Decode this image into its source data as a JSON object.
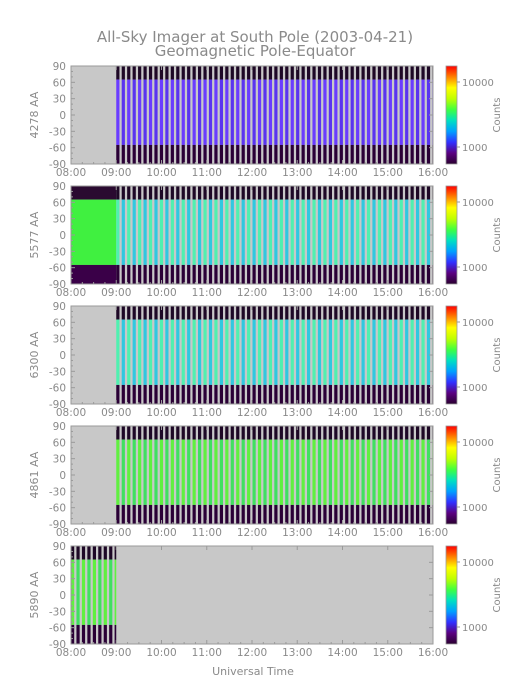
{
  "title_line1": "All-Sky Imager at South Pole (2003-04-21)",
  "title_line2": "Geomagnetic Pole-Equator",
  "xaxis_label": "Universal Time",
  "colorbar_label": "Counts",
  "x_ticks": [
    "08:00",
    "09:00",
    "10:00",
    "11:00",
    "12:00",
    "13:00",
    "14:00",
    "15:00",
    "16:00"
  ],
  "y_ticks": [
    "90",
    "60",
    "30",
    "0",
    "-30",
    "-60",
    "-90"
  ],
  "colorbar_ticks": [
    "10000",
    "1000"
  ],
  "colors": {
    "nodata": "#c8c8c8",
    "border": "#9a9a9a",
    "colormap": [
      "#2a0030",
      "#5a0080",
      "#3030ff",
      "#00a0ff",
      "#00e0c0",
      "#40ff40",
      "#c0ff00",
      "#ffff00",
      "#ff8000",
      "#ff0000"
    ]
  },
  "chart_data": [
    {
      "type": "heatmap",
      "panel": "4278 AA",
      "ylabel": "4278 AA",
      "x_range": [
        "08:00",
        "16:00"
      ],
      "ylim": [
        -90,
        90
      ],
      "data_start": "09:00",
      "data_end": "16:00",
      "pattern": "striped",
      "band_lat": [
        -55,
        65
      ],
      "band_level": "blue-violet",
      "outer_level": "dark"
    },
    {
      "type": "heatmap",
      "panel": "5577 AA",
      "ylabel": "5577 AA",
      "x_range": [
        "08:00",
        "16:00"
      ],
      "ylim": [
        -90,
        90
      ],
      "data_start": "08:00",
      "data_end": "16:00",
      "pattern": "solid-then-striped",
      "solid_until": "09:00",
      "band_lat": [
        -55,
        65
      ],
      "band_level": "cyan-green",
      "outer_level": "dark"
    },
    {
      "type": "heatmap",
      "panel": "6300 AA",
      "ylabel": "6300 AA",
      "x_range": [
        "08:00",
        "16:00"
      ],
      "ylim": [
        -90,
        90
      ],
      "data_start": "09:00",
      "data_end": "16:00",
      "pattern": "striped",
      "band_lat": [
        -55,
        65
      ],
      "band_level": "cyan-green",
      "outer_level": "dark"
    },
    {
      "type": "heatmap",
      "panel": "4861 AA",
      "ylabel": "4861 AA",
      "x_range": [
        "08:00",
        "16:00"
      ],
      "ylim": [
        -90,
        90
      ],
      "data_start": "09:00",
      "data_end": "16:00",
      "pattern": "striped",
      "band_lat": [
        -55,
        65
      ],
      "band_level": "green",
      "outer_level": "dark"
    },
    {
      "type": "heatmap",
      "panel": "5890 AA",
      "ylabel": "5890 AA",
      "x_range": [
        "08:00",
        "16:00"
      ],
      "ylim": [
        -90,
        90
      ],
      "data_start": "08:00",
      "data_end": "09:00",
      "pattern": "striped",
      "band_lat": [
        -55,
        65
      ],
      "band_level": "green",
      "outer_level": "dark"
    }
  ]
}
